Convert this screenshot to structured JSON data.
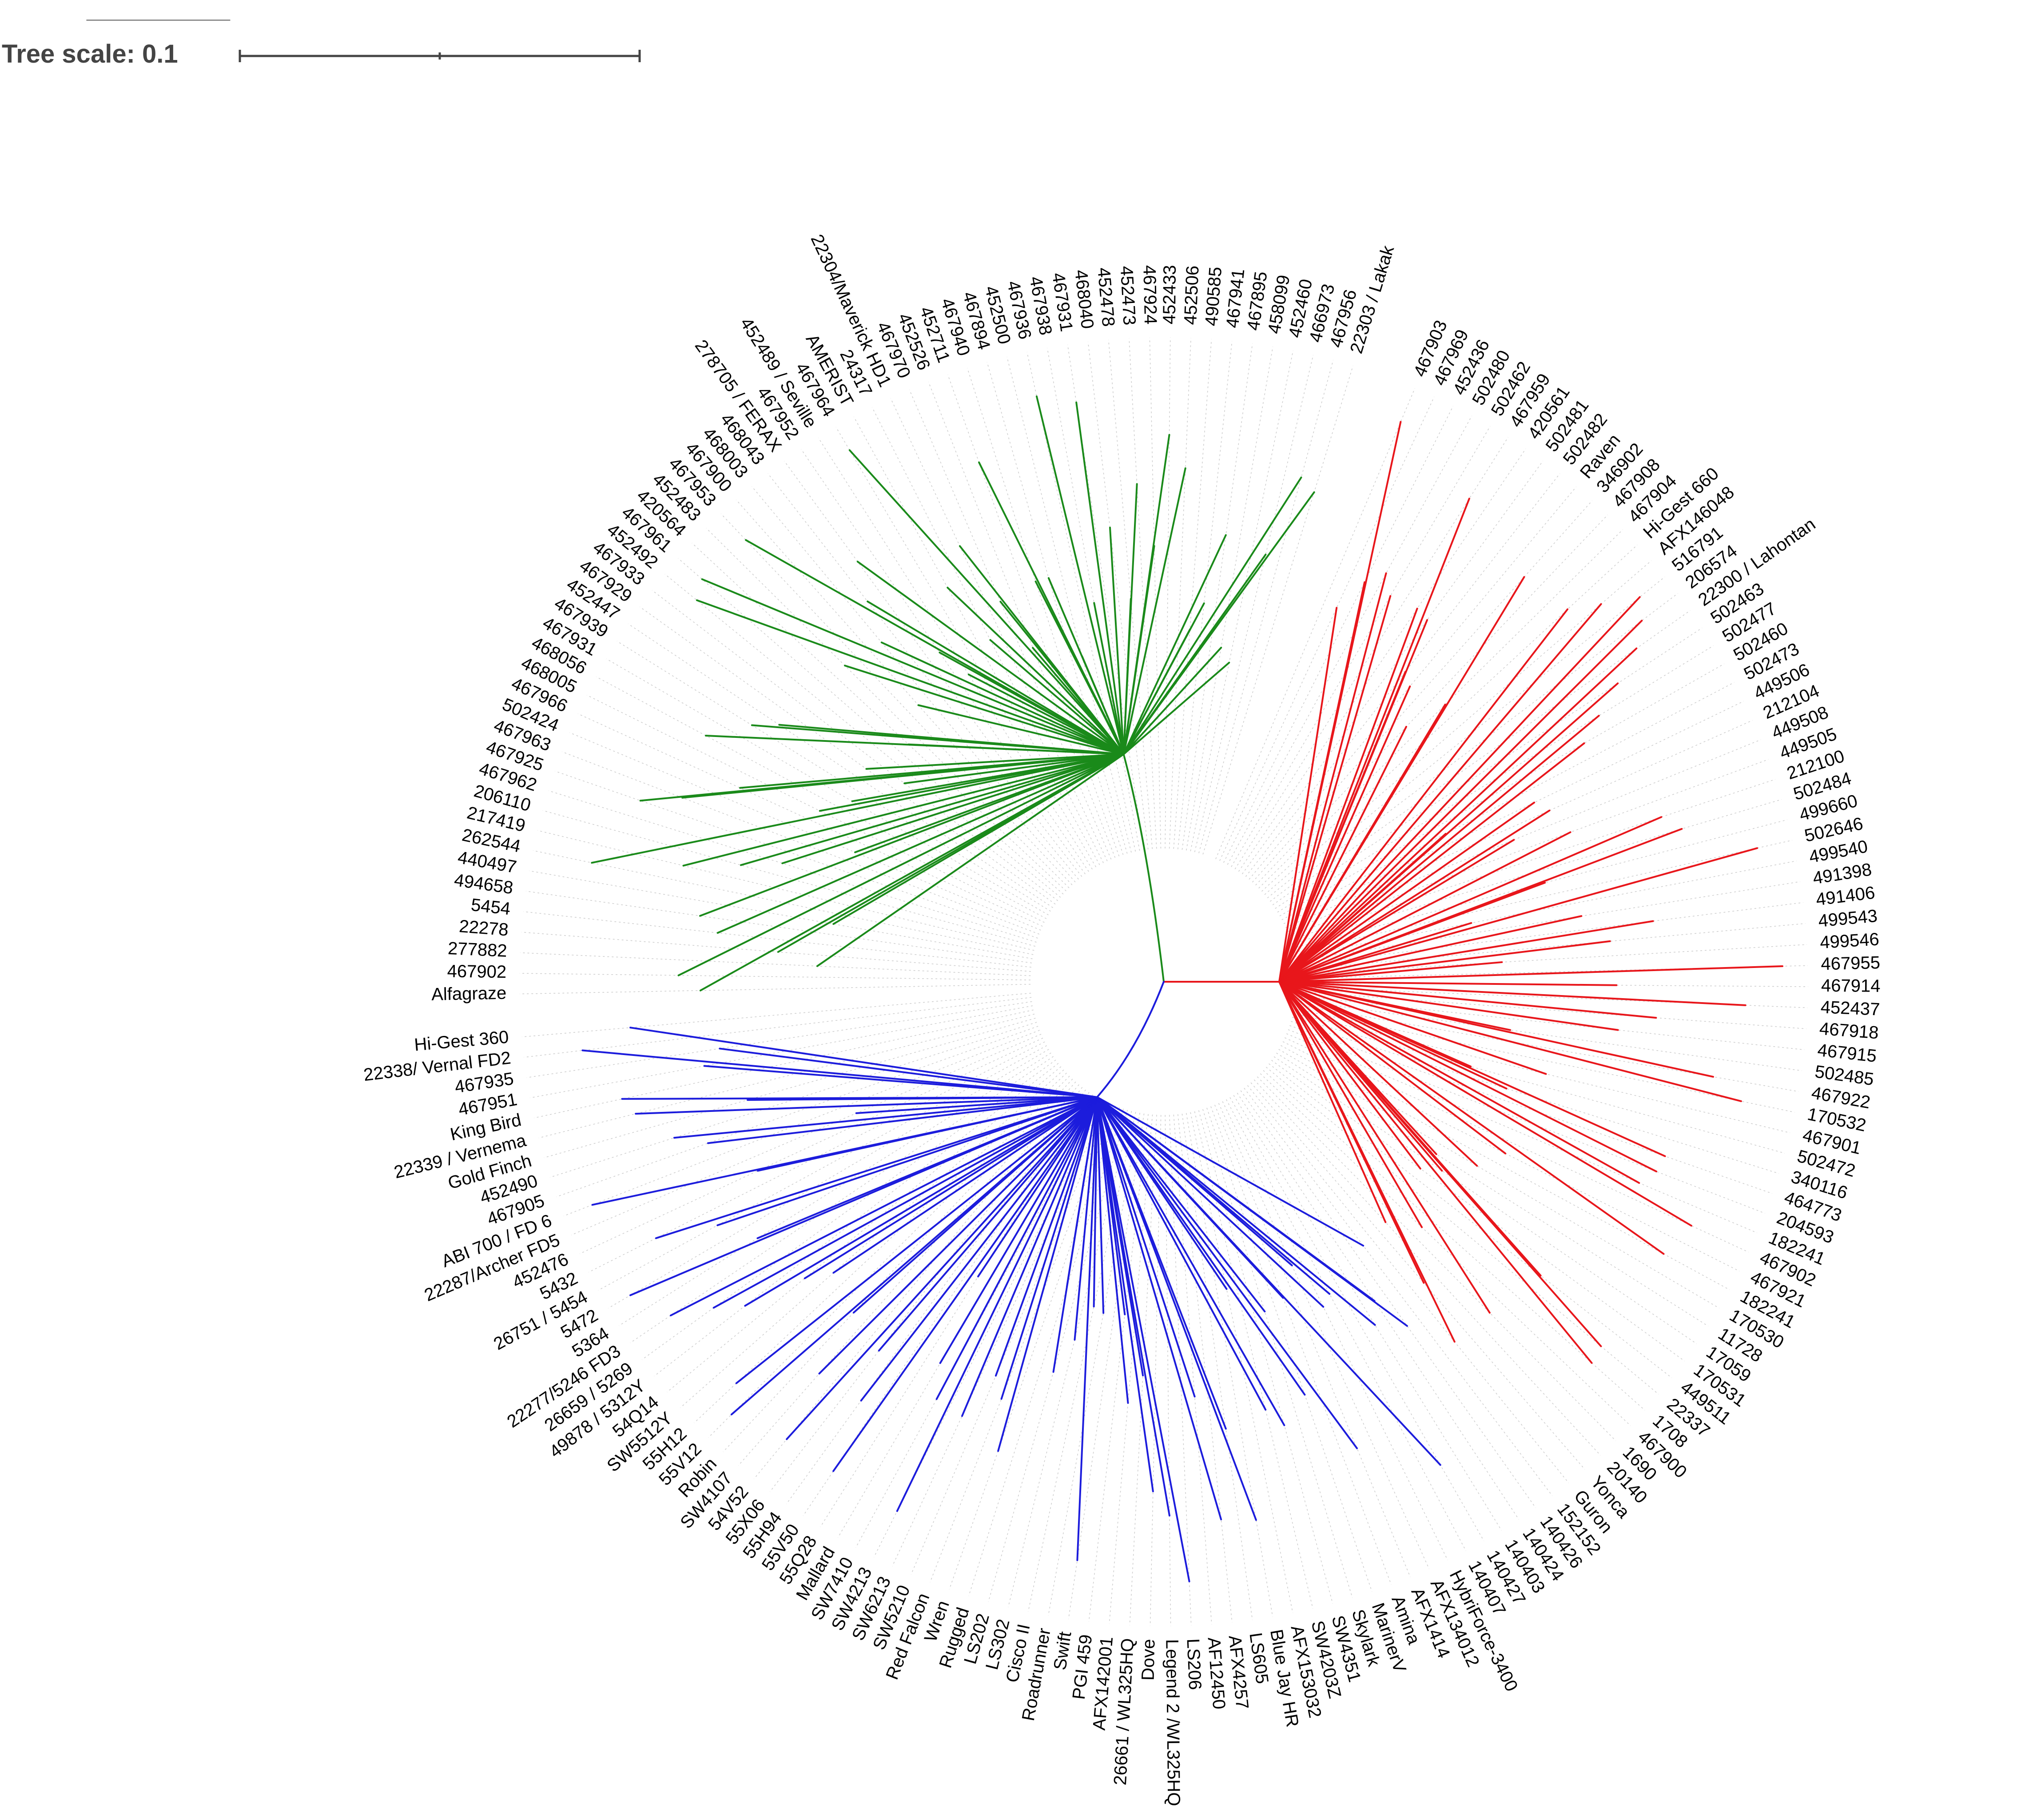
{
  "scale": {
    "label": "Tree scale: 0.1",
    "value": 0.1
  },
  "colors": {
    "green": "#1a8a1a",
    "red": "#e8161b",
    "blue": "#1c1cdc",
    "guide": "#cccccc",
    "scale": "#444444"
  },
  "clades": {
    "green": {
      "labels": [
        "Alfagraze",
        "467902",
        "277882",
        "22278",
        "5454",
        "494658",
        "440497",
        "262544",
        "217419",
        "206110",
        "467962",
        "467925",
        "467963",
        "502424",
        "467966",
        "468005",
        "468056",
        "467931",
        "467939",
        "452447",
        "467929",
        "467933",
        "452492",
        "467961",
        "420564",
        "452483",
        "467953",
        "467900",
        "468003",
        "468043",
        "278705 / FERAX",
        "467952",
        "452489 / Seville",
        "467964",
        "AMERIST",
        "24317",
        "22304/Maverick HD1",
        "467970",
        "452526",
        "452711",
        "467940",
        "467894",
        "452500",
        "467936",
        "467938",
        "467931",
        "468040",
        "452478",
        "452473",
        "467924",
        "452433",
        "452506",
        "490585",
        "467941",
        "467895",
        "458099",
        "452460",
        "466973",
        "467956",
        "22303 / Lakak"
      ]
    },
    "red": {
      "labels": [
        "467903",
        "467969",
        "452436",
        "502480",
        "502462",
        "467959",
        "420561",
        "502481",
        "502482",
        "Raven",
        "346902",
        "467908",
        "467904",
        "Hi-Gest 660",
        "AFX146048",
        "516791",
        "206574",
        "22300 / Lahontan",
        "502463",
        "502477",
        "502460",
        "502473",
        "449506",
        "212104",
        "449508",
        "449505",
        "212100",
        "502484",
        "499660",
        "502646",
        "499540",
        "491398",
        "491406",
        "499543",
        "499546",
        "467955",
        "467914",
        "452437",
        "467918",
        "467915",
        "502485",
        "467922",
        "170532",
        "467901",
        "502472",
        "340116",
        "464773",
        "204593",
        "182241",
        "467902",
        "467921",
        "182241",
        "170530",
        "11728",
        "17059",
        "170531",
        "449511",
        "22337",
        "1708",
        "467900",
        "1690",
        "20140",
        "Yonca",
        "Guron"
      ]
    },
    "blue": {
      "labels": [
        "152152",
        "140426",
        "140424",
        "140403",
        "140427",
        "140407",
        "HybriForce-3400",
        "AFX134012",
        "AFX1414",
        "Amina",
        "MarinerV",
        "Skylark",
        "SW4351",
        "SW4203Z",
        "AFX153032",
        "Blue Jay HR",
        "LS605",
        "AFX4257",
        "AF12450",
        "LS206",
        "Legend 2 /WL325HQ",
        "Dove",
        "26661 / WL325HQ",
        "AFX142001",
        "PGI 459",
        "Swift",
        "Roadrunner",
        "Cisco II",
        "LS302",
        "LS202",
        "Rugged",
        "Wren",
        "Red Falcon",
        "SW5210",
        "SW6213",
        "SW4213",
        "SW7410",
        "Mallard",
        "55Q28",
        "55V50",
        "55H94",
        "55X06",
        "54V52",
        "SW4107",
        "Robin",
        "55V12",
        "55H12",
        "SW5512Y",
        "54Q14",
        "49878 / 5312Y",
        "26659 / 5269",
        "22277/5246 FD3",
        "5364",
        "5472",
        "26751 / 5454",
        "5432",
        "452476",
        "22287/Archer FD5",
        "ABI 700 / FD 6",
        "467905",
        "452490",
        "Gold Finch",
        "22339 / Vernema",
        "King Bird",
        "467951",
        "467935",
        "22338/ Vernal FD2",
        "Hi-Gest 360"
      ]
    }
  }
}
